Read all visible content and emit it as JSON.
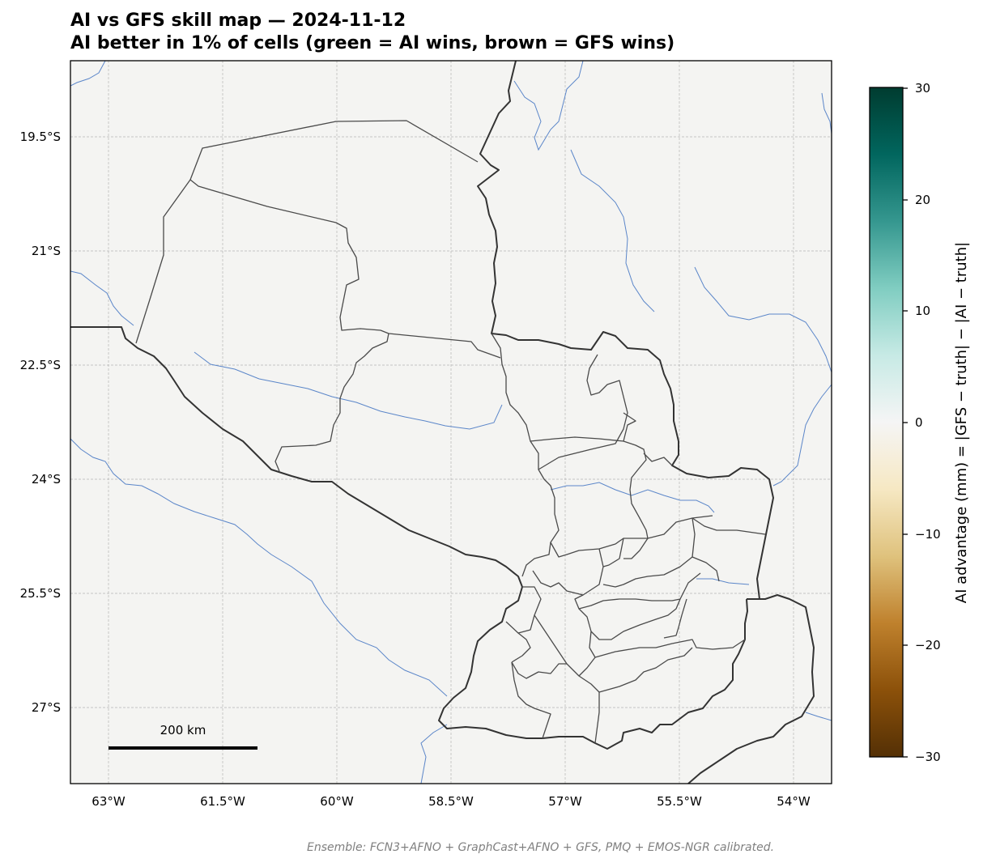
{
  "title_line1": "AI vs GFS skill map — 2024-11-12",
  "title_line2": "AI better in 1% of cells   (green = AI wins, brown = GFS wins)",
  "map": {
    "lat_ticks": [
      "19.5°S",
      "21°S",
      "22.5°S",
      "24°S",
      "25.5°S",
      "27°S"
    ],
    "lon_ticks": [
      "63°W",
      "61.5°W",
      "60°W",
      "58.5°W",
      "57°W",
      "55.5°W",
      "54°W"
    ],
    "scale_bar_label": "200 km",
    "colors": {
      "background": "#f4f4f2",
      "borders": "#333333",
      "rivers": "#5b86c9",
      "grid": "#b0b0b0"
    }
  },
  "colorbar": {
    "label": "AI advantage (mm) = |GFS − truth| − |AI − truth|",
    "ticks": [
      "30",
      "20",
      "10",
      "0",
      "−10",
      "−20",
      "−30"
    ],
    "min": -30,
    "max": 30,
    "colormap": "BrBG"
  },
  "footnote": "Ensemble: FCN3+AFNO + GraphCast+AFNO + GFS, PMQ + EMOS-NGR calibrated."
}
